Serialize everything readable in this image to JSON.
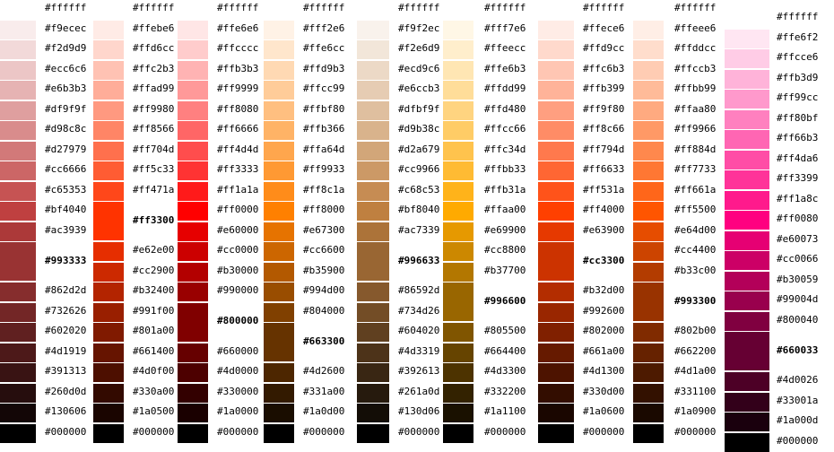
{
  "columns": [
    {
      "base": "993333",
      "colors": [
        "ffffff",
        "f9ecec",
        "f2d9d9",
        "ecc6c6",
        "e6b3b3",
        "df9f9f",
        "d98c8c",
        "d27979",
        "cc6666",
        "c65353",
        "bf4040",
        "ac3939",
        "993333",
        "862d2d",
        "732626",
        "602020",
        "4d1919",
        "391313",
        "260d0d",
        "130606",
        "000000"
      ]
    },
    {
      "base": "ff3300",
      "colors": [
        "ffffff",
        "ffebe6",
        "ffd6cc",
        "ffc2b3",
        "ffad99",
        "ff9980",
        "ff8566",
        "ff704d",
        "ff5c33",
        "ff471a",
        "ff3300",
        "e62e00",
        "cc2900",
        "b32400",
        "991f00",
        "801a00",
        "661400",
        "4d0f00",
        "330a00",
        "1a0500",
        "000000"
      ]
    },
    {
      "base": "800000",
      "colors": [
        "ffffff",
        "ffe6e6",
        "ffcccc",
        "ffb3b3",
        "ff9999",
        "ff8080",
        "ff6666",
        "ff4d4d",
        "ff3333",
        "ff1a1a",
        "ff0000",
        "e60000",
        "cc0000",
        "b30000",
        "990000",
        "800000",
        "660000",
        "4d0000",
        "330000",
        "1a0000",
        "000000"
      ]
    },
    {
      "base": "663300",
      "colors": [
        "ffffff",
        "fff2e6",
        "ffe6cc",
        "ffd9b3",
        "ffcc99",
        "ffbf80",
        "ffb366",
        "ffa64d",
        "ff9933",
        "ff8c1a",
        "ff8000",
        "e67300",
        "cc6600",
        "b35900",
        "994d00",
        "804000",
        "663300",
        "4d2600",
        "331a00",
        "1a0d00",
        "000000"
      ]
    },
    {
      "base": "996633",
      "colors": [
        "ffffff",
        "f9f2ec",
        "f2e6d9",
        "ecd9c6",
        "e6ccb3",
        "dfbf9f",
        "d9b38c",
        "d2a679",
        "cc9966",
        "c68c53",
        "bf8040",
        "ac7339",
        "996633",
        "86592d",
        "734d26",
        "604020",
        "4d3319",
        "392613",
        "261a0d",
        "130d06",
        "000000"
      ]
    },
    {
      "base": "996600",
      "colors": [
        "ffffff",
        "fff7e6",
        "ffeecc",
        "ffe6b3",
        "ffdd99",
        "ffd480",
        "ffcc66",
        "ffc34d",
        "ffbb33",
        "ffb31a",
        "ffaa00",
        "e69900",
        "cc8800",
        "b37700",
        "996600",
        "805500",
        "664400",
        "4d3300",
        "332200",
        "1a1100",
        "000000"
      ]
    },
    {
      "base": "cc3300",
      "colors": [
        "ffffff",
        "ffece6",
        "ffd9cc",
        "ffc6b3",
        "ffb399",
        "ff9f80",
        "ff8c66",
        "ff794d",
        "ff6633",
        "ff531a",
        "ff4000",
        "e63900",
        "cc3300",
        "b32d00",
        "992600",
        "802000",
        "661a00",
        "4d1300",
        "330d00",
        "1a0600",
        "000000"
      ]
    },
    {
      "base": "993300",
      "colors": [
        "ffffff",
        "ffeee6",
        "ffddcc",
        "ffccb3",
        "ffbb99",
        "ffaa80",
        "ff9966",
        "ff884d",
        "ff7733",
        "ff661a",
        "ff5500",
        "e64d00",
        "cc4400",
        "b33c00",
        "993300",
        "802b00",
        "662200",
        "4d1a00",
        "331100",
        "1a0900",
        "000000"
      ]
    },
    {
      "base": "660033",
      "colors": [
        "ffffff",
        "ffe6f2",
        "ffcce6",
        "ffb3d9",
        "ff99cc",
        "ff80bf",
        "ff66b3",
        "ff4da6",
        "ff3399",
        "ff1a8c",
        "ff0080",
        "e60073",
        "cc0066",
        "b30059",
        "99004d",
        "800040",
        "660033",
        "4d0026",
        "33001a",
        "1a000d",
        "000000"
      ]
    }
  ]
}
